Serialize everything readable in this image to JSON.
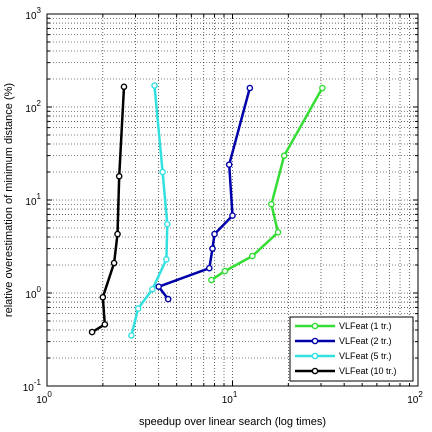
{
  "chart_data": {
    "type": "line",
    "title": "",
    "xlabel": "speedup over linear search (log times)",
    "ylabel": "relative overestimation of minimum distance (%)",
    "xscale": "log",
    "yscale": "log",
    "xlim": [
      1,
      100
    ],
    "ylim": [
      0.1,
      1000
    ],
    "grid": true,
    "legend_position": "bottom-right",
    "x_tick_labels": [
      {
        "value": 1,
        "base": "10",
        "exp": "0"
      },
      {
        "value": 10,
        "base": "10",
        "exp": "1"
      },
      {
        "value": 100,
        "base": "10",
        "exp": "2"
      }
    ],
    "y_tick_labels": [
      {
        "value": 0.1,
        "base": "10",
        "exp": "-1"
      },
      {
        "value": 1,
        "base": "10",
        "exp": "0"
      },
      {
        "value": 10,
        "base": "10",
        "exp": "1"
      },
      {
        "value": 100,
        "base": "10",
        "exp": "2"
      },
      {
        "value": 1000,
        "base": "10",
        "exp": "3"
      }
    ],
    "series": [
      {
        "name": "VLFeat (1 tr.)",
        "color": "#33dd33",
        "points": [
          [
            30.5,
            160
          ],
          [
            19.0,
            30.0
          ],
          [
            16.2,
            9.0
          ],
          [
            17.6,
            4.5
          ],
          [
            12.8,
            2.5
          ],
          [
            9.1,
            1.72
          ],
          [
            7.7,
            1.38
          ]
        ]
      },
      {
        "name": "VLFeat (2 tr.)",
        "color": "#0000aa",
        "points": [
          [
            12.4,
            160
          ],
          [
            9.6,
            24.0
          ],
          [
            10.0,
            6.8
          ],
          [
            8.0,
            4.3
          ],
          [
            7.8,
            3.0
          ],
          [
            7.5,
            1.85
          ],
          [
            4.0,
            1.17
          ],
          [
            4.5,
            0.86
          ]
        ]
      },
      {
        "name": "VLFeat (5 tr.)",
        "color": "#33e0e0",
        "points": [
          [
            3.8,
            170
          ],
          [
            4.2,
            20.0
          ],
          [
            4.45,
            5.5
          ],
          [
            4.4,
            2.3
          ],
          [
            3.7,
            1.1
          ],
          [
            3.1,
            0.68
          ],
          [
            2.85,
            0.35
          ]
        ]
      },
      {
        "name": "VLFeat (10 tr.)",
        "color": "#000000",
        "points": [
          [
            2.6,
            165
          ],
          [
            2.45,
            18.0
          ],
          [
            2.4,
            4.3
          ],
          [
            2.3,
            2.1
          ],
          [
            2.0,
            0.9
          ],
          [
            2.05,
            0.46
          ],
          [
            1.75,
            0.38
          ]
        ]
      }
    ]
  }
}
